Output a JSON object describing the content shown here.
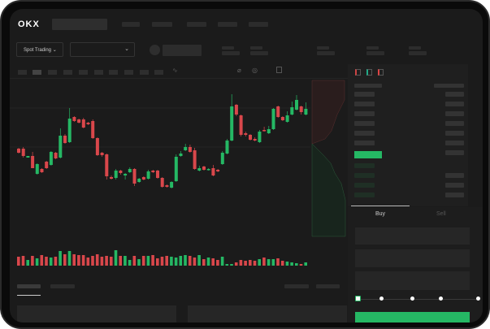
{
  "header": {
    "logo": "OKX",
    "market_select": "Spot Trading"
  },
  "order_form": {
    "tabs": [
      "Buy",
      "Sell"
    ],
    "active_tab": "Buy",
    "slider_value_percent": 0
  },
  "colors": {
    "up": "#25b864",
    "down": "#d9474b",
    "background": "#1b1b1b",
    "accent": "#25b864"
  },
  "icons": [
    "chevron-down-icon",
    "indicator-icon",
    "drawing-icon",
    "camera-icon",
    "fullscreen-icon",
    "orderbook-both-icon",
    "orderbook-buy-icon",
    "orderbook-sell-icon"
  ],
  "chart_data": {
    "type": "candlestick",
    "ohlc": [
      [
        68,
        63,
        69,
        62
      ],
      [
        68,
        59,
        70,
        57
      ],
      [
        57,
        59,
        59,
        57
      ],
      [
        59,
        44,
        64,
        44
      ],
      [
        37,
        49,
        50,
        36
      ],
      [
        43,
        39,
        44,
        38
      ],
      [
        52,
        44,
        53,
        43
      ],
      [
        48,
        64,
        65,
        47
      ],
      [
        63,
        56,
        64,
        55
      ],
      [
        57,
        84,
        93,
        56
      ],
      [
        84,
        75,
        86,
        74
      ],
      [
        76,
        105,
        118,
        75
      ],
      [
        107,
        102,
        108,
        101
      ],
      [
        104,
        100,
        105,
        99
      ],
      [
        104,
        94,
        106,
        93
      ],
      [
        100,
        98,
        101,
        97
      ],
      [
        102,
        81,
        104,
        80
      ],
      [
        81,
        60,
        82,
        59
      ],
      [
        63,
        60,
        64,
        58
      ],
      [
        61,
        34,
        62,
        30
      ],
      [
        33,
        31,
        35,
        30
      ],
      [
        32,
        41,
        43,
        30
      ],
      [
        41,
        38,
        42,
        36
      ],
      [
        35,
        37,
        38,
        30
      ],
      [
        39,
        43,
        45,
        38
      ],
      [
        43,
        25,
        44,
        22
      ],
      [
        27,
        31,
        32,
        26
      ],
      [
        33,
        30,
        34,
        29
      ],
      [
        31,
        40,
        42,
        30
      ],
      [
        41,
        39,
        42,
        38
      ],
      [
        41,
        32,
        42,
        31
      ],
      [
        32,
        21,
        33,
        20
      ],
      [
        23,
        21,
        24,
        20
      ],
      [
        20,
        27,
        28,
        19
      ],
      [
        28,
        58,
        61,
        27
      ],
      [
        59,
        62,
        65,
        58
      ],
      [
        66,
        70,
        74,
        65
      ],
      [
        70,
        64,
        73,
        63
      ],
      [
        66,
        43,
        69,
        42
      ],
      [
        41,
        44,
        47,
        40
      ],
      [
        46,
        42,
        47,
        41
      ],
      [
        42,
        43,
        44,
        41
      ],
      [
        44,
        35,
        48,
        34
      ],
      [
        42,
        40,
        43,
        39
      ],
      [
        49,
        63,
        65,
        48
      ],
      [
        62,
        78,
        80,
        61
      ],
      [
        78,
        120,
        135,
        77
      ],
      [
        122,
        110,
        123,
        108
      ],
      [
        109,
        85,
        110,
        83
      ],
      [
        87,
        85,
        89,
        83
      ],
      [
        85,
        79,
        86,
        78
      ],
      [
        80,
        78,
        82,
        77
      ],
      [
        76,
        89,
        91,
        75
      ],
      [
        91,
        90,
        95,
        89
      ],
      [
        87,
        92,
        96,
        86
      ],
      [
        92,
        117,
        118,
        91
      ],
      [
        120,
        107,
        121,
        106
      ],
      [
        107,
        103,
        108,
        102
      ],
      [
        101,
        109,
        114,
        100
      ],
      [
        110,
        119,
        126,
        109
      ],
      [
        116,
        128,
        134,
        115
      ],
      [
        120,
        113,
        121,
        110
      ],
      [
        110,
        117,
        125,
        109
      ]
    ],
    "volume": [
      11,
      12,
      7,
      12,
      9,
      13,
      11,
      10,
      11,
      18,
      14,
      18,
      14,
      13,
      13,
      10,
      12,
      14,
      11,
      12,
      11,
      19,
      12,
      12,
      7,
      12,
      8,
      12,
      12,
      13,
      9,
      11,
      12,
      11,
      10,
      12,
      13,
      12,
      10,
      13,
      8,
      10,
      9,
      7,
      11,
      2,
      2,
      4,
      7,
      6,
      7,
      6,
      8,
      10,
      8,
      8,
      9,
      6,
      5,
      4,
      3,
      2,
      4
    ]
  }
}
